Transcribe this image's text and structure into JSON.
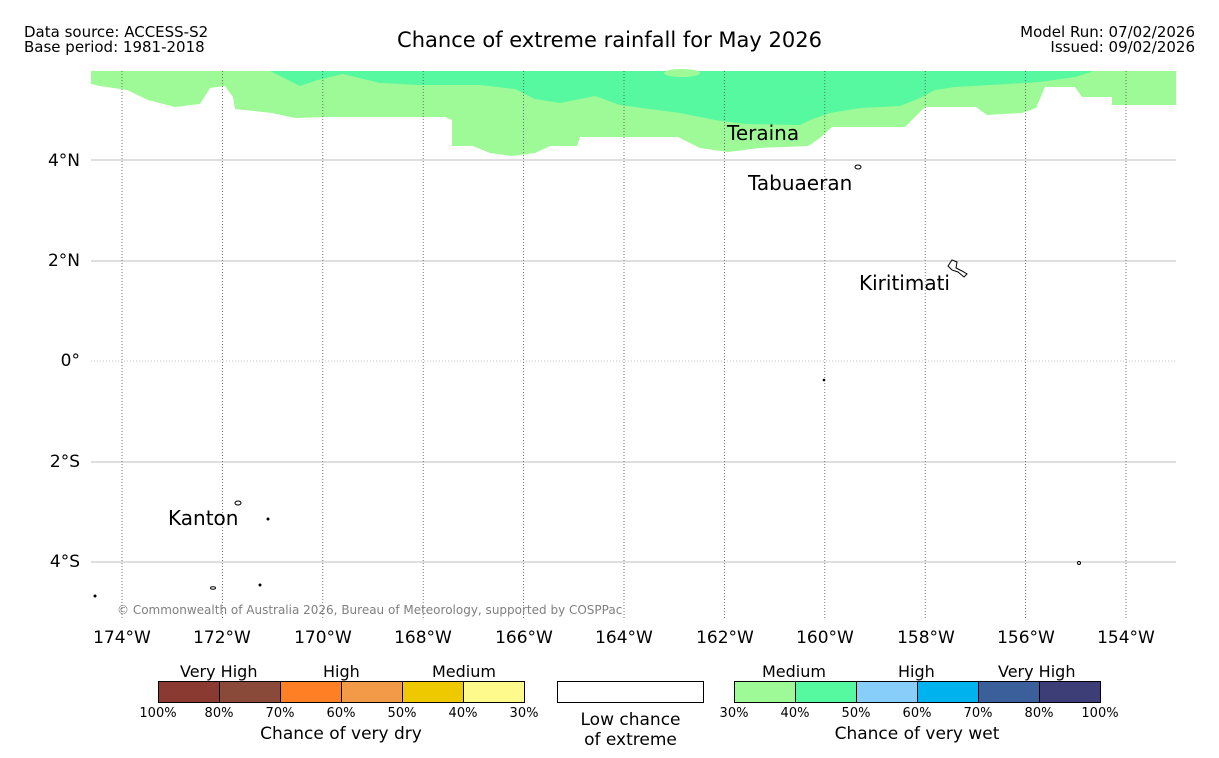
{
  "header": {
    "data_source": "Data source: ACCESS-S2",
    "base_period": "Base period: 1981-2018",
    "title": "Chance of extreme rainfall for May 2026",
    "model_run": "Model Run: 07/02/2026",
    "issued": "Issued: 09/02/2026"
  },
  "map": {
    "lat_labels": [
      "4°N",
      "2°N",
      "0°",
      "2°S",
      "4°S"
    ],
    "lon_labels": [
      "174°W",
      "172°W",
      "170°W",
      "168°W",
      "166°W",
      "164°W",
      "162°W",
      "160°W",
      "158°W",
      "156°W",
      "154°W"
    ],
    "places": [
      "Teraina",
      "Tabuaeran",
      "Kiritimati",
      "Kanton"
    ],
    "shading_colors": {
      "medium_wet": "#9efa96",
      "medium_high_wet": "#56f8a0"
    },
    "copyright": "© Commonwealth of Australia 2026, Bureau of Meteorology, supported by COSPPac"
  },
  "legend": {
    "dry": {
      "categories": [
        "Very High",
        "High",
        "Medium"
      ],
      "ticks": [
        "100%",
        "80%",
        "70%",
        "60%",
        "50%",
        "40%",
        "30%"
      ],
      "colors": [
        "#8b3a32",
        "#8a4a3a",
        "#ff7f24",
        "#f29a48",
        "#eec900",
        "#fffa8c"
      ],
      "label": "Chance of very dry"
    },
    "low": {
      "label_line1": "Low chance",
      "label_line2": "of extreme"
    },
    "wet": {
      "categories": [
        "Medium",
        "High",
        "Very High"
      ],
      "ticks": [
        "30%",
        "40%",
        "50%",
        "60%",
        "70%",
        "80%",
        "100%"
      ],
      "colors": [
        "#9efa96",
        "#56f8a0",
        "#87cefa",
        "#00b2ee",
        "#3a5f9a",
        "#3d3d78"
      ],
      "label": "Chance of very wet"
    }
  }
}
